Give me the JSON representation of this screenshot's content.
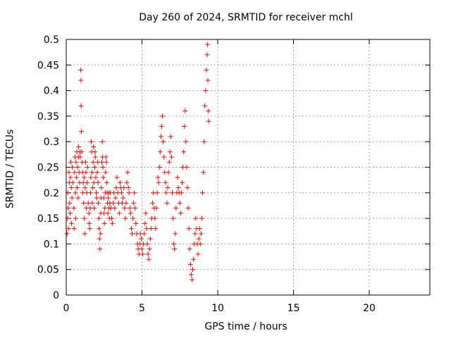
{
  "chart_data": {
    "type": "scatter",
    "title": "Day 260 of 2024, SRMTID for receiver mchl",
    "xlabel": "GPS time / hours",
    "ylabel": "SRMTID / TECUs",
    "xlim": [
      0,
      24
    ],
    "ylim": [
      0,
      0.5
    ],
    "xticks": [
      "0",
      "5",
      "10",
      "15",
      "20"
    ],
    "xtick_values": [
      0,
      5,
      10,
      15,
      20
    ],
    "yticks": [
      "0",
      "0.05",
      "0.1",
      "0.15",
      "0.2",
      "0.25",
      "0.3",
      "0.35",
      "0.4",
      "0.45",
      "0.5"
    ],
    "ytick_values": [
      0,
      0.05,
      0.1,
      0.15,
      0.2,
      0.25,
      0.3,
      0.35,
      0.4,
      0.45,
      0.5
    ],
    "grid": true,
    "marker": "+",
    "color": "#ff0000",
    "points": [
      [
        0.05,
        0.12
      ],
      [
        0.08,
        0.15
      ],
      [
        0.1,
        0.2
      ],
      [
        0.12,
        0.17
      ],
      [
        0.15,
        0.13
      ],
      [
        0.18,
        0.24
      ],
      [
        0.2,
        0.22
      ],
      [
        0.22,
        0.18
      ],
      [
        0.25,
        0.16
      ],
      [
        0.28,
        0.23
      ],
      [
        0.3,
        0.26
      ],
      [
        0.33,
        0.21
      ],
      [
        0.35,
        0.14
      ],
      [
        0.38,
        0.19
      ],
      [
        0.4,
        0.25
      ],
      [
        0.45,
        0.22
      ],
      [
        0.5,
        0.17
      ],
      [
        0.52,
        0.13
      ],
      [
        0.55,
        0.24
      ],
      [
        0.58,
        0.27
      ],
      [
        0.6,
        0.2
      ],
      [
        0.62,
        0.15
      ],
      [
        0.65,
        0.26
      ],
      [
        0.68,
        0.23
      ],
      [
        0.7,
        0.28
      ],
      [
        0.72,
        0.21
      ],
      [
        0.75,
        0.25
      ],
      [
        0.78,
        0.19
      ],
      [
        0.8,
        0.27
      ],
      [
        0.82,
        0.29
      ],
      [
        0.85,
        0.24
      ],
      [
        0.88,
        0.22
      ],
      [
        0.9,
        0.28
      ],
      [
        0.92,
        0.27
      ],
      [
        0.95,
        0.44
      ],
      [
        0.97,
        0.42
      ],
      [
        0.98,
        0.37
      ],
      [
        1.0,
        0.32
      ],
      [
        1.02,
        0.28
      ],
      [
        1.05,
        0.26
      ],
      [
        1.08,
        0.24
      ],
      [
        1.1,
        0.2
      ],
      [
        1.12,
        0.22
      ],
      [
        1.15,
        0.18
      ],
      [
        1.18,
        0.23
      ],
      [
        1.2,
        0.15
      ],
      [
        1.22,
        0.12
      ],
      [
        1.25,
        0.21
      ],
      [
        1.28,
        0.26
      ],
      [
        1.3,
        0.24
      ],
      [
        1.32,
        0.17
      ],
      [
        1.35,
        0.2
      ],
      [
        1.38,
        0.22
      ],
      [
        1.4,
        0.25
      ],
      [
        1.45,
        0.18
      ],
      [
        1.5,
        0.16
      ],
      [
        1.52,
        0.14
      ],
      [
        1.55,
        0.13
      ],
      [
        1.58,
        0.17
      ],
      [
        1.6,
        0.2
      ],
      [
        1.62,
        0.23
      ],
      [
        1.65,
        0.3
      ],
      [
        1.68,
        0.28
      ],
      [
        1.7,
        0.24
      ],
      [
        1.72,
        0.18
      ],
      [
        1.75,
        0.21
      ],
      [
        1.78,
        0.26
      ],
      [
        1.8,
        0.29
      ],
      [
        1.82,
        0.22
      ],
      [
        1.85,
        0.17
      ],
      [
        1.88,
        0.25
      ],
      [
        1.9,
        0.28
      ],
      [
        1.92,
        0.27
      ],
      [
        1.95,
        0.23
      ],
      [
        1.98,
        0.2
      ],
      [
        2.0,
        0.19
      ],
      [
        2.05,
        0.24
      ],
      [
        2.08,
        0.26
      ],
      [
        2.1,
        0.22
      ],
      [
        2.12,
        0.18
      ],
      [
        2.15,
        0.15
      ],
      [
        2.18,
        0.13
      ],
      [
        2.2,
        0.11
      ],
      [
        2.22,
        0.09
      ],
      [
        2.25,
        0.12
      ],
      [
        2.28,
        0.16
      ],
      [
        2.3,
        0.19
      ],
      [
        2.32,
        0.21
      ],
      [
        2.35,
        0.26
      ],
      [
        2.38,
        0.3
      ],
      [
        2.4,
        0.27
      ],
      [
        2.42,
        0.25
      ],
      [
        2.45,
        0.23
      ],
      [
        2.48,
        0.19
      ],
      [
        2.5,
        0.16
      ],
      [
        2.52,
        0.14
      ],
      [
        2.55,
        0.17
      ],
      [
        2.58,
        0.2
      ],
      [
        2.6,
        0.24
      ],
      [
        2.62,
        0.27
      ],
      [
        2.65,
        0.26
      ],
      [
        2.68,
        0.22
      ],
      [
        2.7,
        0.2
      ],
      [
        2.72,
        0.18
      ],
      [
        2.75,
        0.16
      ],
      [
        2.78,
        0.19
      ],
      [
        2.8,
        0.2
      ],
      [
        2.82,
        0.17
      ],
      [
        2.85,
        0.15
      ],
      [
        2.88,
        0.18
      ],
      [
        2.9,
        0.2
      ],
      [
        2.95,
        0.17
      ],
      [
        3.0,
        0.15
      ],
      [
        3.05,
        0.14
      ],
      [
        3.1,
        0.18
      ],
      [
        3.15,
        0.2
      ],
      [
        3.2,
        0.17
      ],
      [
        3.25,
        0.19
      ],
      [
        3.3,
        0.21
      ],
      [
        3.35,
        0.23
      ],
      [
        3.4,
        0.2
      ],
      [
        3.45,
        0.18
      ],
      [
        3.5,
        0.16
      ],
      [
        3.55,
        0.22
      ],
      [
        3.6,
        0.21
      ],
      [
        3.65,
        0.2
      ],
      [
        3.7,
        0.18
      ],
      [
        3.75,
        0.19
      ],
      [
        3.8,
        0.21
      ],
      [
        3.85,
        0.17
      ],
      [
        3.9,
        0.15
      ],
      [
        3.95,
        0.18
      ],
      [
        4.0,
        0.22
      ],
      [
        4.05,
        0.24
      ],
      [
        4.1,
        0.21
      ],
      [
        4.15,
        0.2
      ],
      [
        4.2,
        0.17
      ],
      [
        4.25,
        0.16
      ],
      [
        4.3,
        0.13
      ],
      [
        4.35,
        0.12
      ],
      [
        4.4,
        0.15
      ],
      [
        4.45,
        0.18
      ],
      [
        4.5,
        0.2
      ],
      [
        4.55,
        0.17
      ],
      [
        4.6,
        0.14
      ],
      [
        4.65,
        0.12
      ],
      [
        4.7,
        0.1
      ],
      [
        4.75,
        0.09
      ],
      [
        4.8,
        0.08
      ],
      [
        4.85,
        0.1
      ],
      [
        4.9,
        0.12
      ],
      [
        4.95,
        0.11
      ],
      [
        5.0,
        0.09
      ],
      [
        5.05,
        0.08
      ],
      [
        5.1,
        0.1
      ],
      [
        5.15,
        0.12
      ],
      [
        5.2,
        0.14
      ],
      [
        5.25,
        0.16
      ],
      [
        5.3,
        0.13
      ],
      [
        5.35,
        0.1
      ],
      [
        5.4,
        0.08
      ],
      [
        5.45,
        0.07
      ],
      [
        5.5,
        0.09
      ],
      [
        5.55,
        0.11
      ],
      [
        5.6,
        0.13
      ],
      [
        5.65,
        0.15
      ],
      [
        5.7,
        0.18
      ],
      [
        5.75,
        0.2
      ],
      [
        5.8,
        0.17
      ],
      [
        5.85,
        0.15
      ],
      [
        5.9,
        0.13
      ],
      [
        5.95,
        0.17
      ],
      [
        6.0,
        0.2
      ],
      [
        6.05,
        0.23
      ],
      [
        6.1,
        0.22
      ],
      [
        6.15,
        0.25
      ],
      [
        6.2,
        0.28
      ],
      [
        6.25,
        0.31
      ],
      [
        6.3,
        0.33
      ],
      [
        6.35,
        0.35
      ],
      [
        6.4,
        0.3
      ],
      [
        6.45,
        0.27
      ],
      [
        6.5,
        0.24
      ],
      [
        6.55,
        0.22
      ],
      [
        6.6,
        0.2
      ],
      [
        6.65,
        0.18
      ],
      [
        6.7,
        0.21
      ],
      [
        6.75,
        0.24
      ],
      [
        6.8,
        0.26
      ],
      [
        6.85,
        0.28
      ],
      [
        6.9,
        0.31
      ],
      [
        6.95,
        0.27
      ],
      [
        7.0,
        0.2
      ],
      [
        7.05,
        0.15
      ],
      [
        7.1,
        0.1
      ],
      [
        7.15,
        0.09
      ],
      [
        7.2,
        0.12
      ],
      [
        7.25,
        0.17
      ],
      [
        7.3,
        0.2
      ],
      [
        7.35,
        0.23
      ],
      [
        7.4,
        0.21
      ],
      [
        7.45,
        0.2
      ],
      [
        7.5,
        0.18
      ],
      [
        7.55,
        0.16
      ],
      [
        7.6,
        0.2
      ],
      [
        7.65,
        0.22
      ],
      [
        7.7,
        0.25
      ],
      [
        7.75,
        0.28
      ],
      [
        7.8,
        0.33
      ],
      [
        7.85,
        0.36
      ],
      [
        7.9,
        0.3
      ],
      [
        7.95,
        0.25
      ],
      [
        8.0,
        0.21
      ],
      [
        8.05,
        0.17
      ],
      [
        8.1,
        0.13
      ],
      [
        8.15,
        0.09
      ],
      [
        8.2,
        0.06
      ],
      [
        8.25,
        0.04
      ],
      [
        8.3,
        0.03
      ],
      [
        8.35,
        0.05
      ],
      [
        8.4,
        0.07
      ],
      [
        8.45,
        0.1
      ],
      [
        8.5,
        0.12
      ],
      [
        8.55,
        0.15
      ],
      [
        8.6,
        0.13
      ],
      [
        8.65,
        0.1
      ],
      [
        8.7,
        0.08
      ],
      [
        8.75,
        0.11
      ],
      [
        8.8,
        0.13
      ],
      [
        8.85,
        0.1
      ],
      [
        8.9,
        0.12
      ],
      [
        8.95,
        0.15
      ],
      [
        9.0,
        0.2
      ],
      [
        9.05,
        0.24
      ],
      [
        9.1,
        0.3
      ],
      [
        9.15,
        0.37
      ],
      [
        9.2,
        0.4
      ],
      [
        9.25,
        0.44
      ],
      [
        9.3,
        0.47
      ],
      [
        9.32,
        0.49
      ],
      [
        9.35,
        0.42
      ],
      [
        9.38,
        0.36
      ],
      [
        9.4,
        0.34
      ]
    ]
  }
}
